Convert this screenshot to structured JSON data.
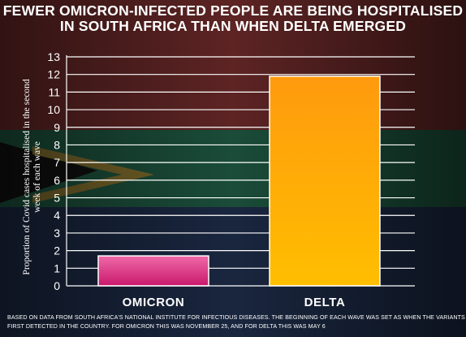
{
  "headline": {
    "line1": "FEWER OMICRON-INFECTED PEOPLE ARE BEING HOSPITALISED",
    "line2": "IN SOUTH AFRICA THAN WHEN DELTA EMERGED"
  },
  "footnote": {
    "line1": "BASED ON DATA FROM SOUTH AFRICA'S NATIONAL INSTITUTE FOR INFECTIOUS DISEASES. THE BEGINNING OF EACH WAVE WAS SET AS WHEN THE VARIANTS WERE",
    "line2": "FIRST DETECTED IN THE COUNTRY. FOR OMICRON THIS WAS NOVEMBER 25, AND FOR DELTA THIS WAS MAY 6"
  },
  "chart_data": {
    "type": "bar",
    "title": "FEWER OMICRON-INFECTED PEOPLE ARE BEING HOSPITALISED IN SOUTH AFRICA THAN WHEN DELTA EMERGED",
    "categories": [
      "OMICRON",
      "DELTA"
    ],
    "values": [
      1.7,
      11.9
    ],
    "ylabel_line1": "Proportion of Covid cases hospitalised in the second",
    "ylabel_line2": "week of each wave",
    "xlabel": "",
    "ylim": [
      0,
      13
    ],
    "yticks": [
      0,
      1,
      2,
      3,
      4,
      5,
      6,
      7,
      8,
      9,
      10,
      11,
      12,
      13
    ],
    "grid": true,
    "colors": {
      "OMICRON": {
        "top": "#f06aa8",
        "bottom": "#c8186c"
      },
      "DELTA": {
        "top": "#ff9a0e",
        "bottom": "#ffbe00"
      }
    }
  }
}
